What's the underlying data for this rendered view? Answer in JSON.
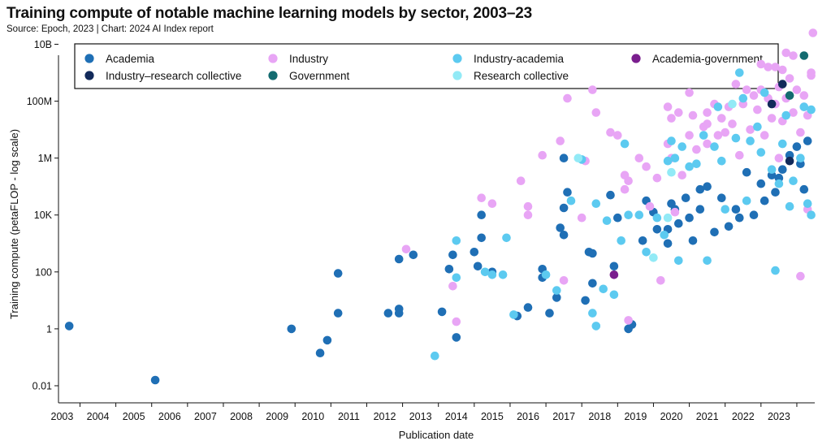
{
  "header": {
    "title": "Training compute of notable machine learning models by sector, 2003–23",
    "source": "Source: Epoch, 2023 | Chart: 2024 AI Index report"
  },
  "colors": {
    "Academia": "#1f6fb5",
    "Industry": "#e8a5f5",
    "Industry-academia": "#5ccaf0",
    "Academia-government": "#7a1e8e",
    "Industry–research collective": "#122a5a",
    "Government": "#136b70",
    "Research collective": "#92eaf6"
  },
  "chart_data": {
    "type": "scatter",
    "title": "Training compute of notable machine learning models by sector, 2003–23",
    "xlabel": "Publication date",
    "ylabel": "Training compute (petaFLOP - log scale)",
    "yscale": "log",
    "xlim": [
      2002.9,
      2024.0
    ],
    "ylim_exponent": [
      -2.6,
      9.9
    ],
    "x_ticks": [
      "2003",
      "2004",
      "2005",
      "2006",
      "2007",
      "2008",
      "2009",
      "2010",
      "2011",
      "2012",
      "2013",
      "2014",
      "2015",
      "2016",
      "2017",
      "2018",
      "2019",
      "2020",
      "2021",
      "2022",
      "2023"
    ],
    "y_ticks": [
      {
        "label": "0.01",
        "exp": -2
      },
      {
        "label": "1",
        "exp": 0
      },
      {
        "label": "100",
        "exp": 2
      },
      {
        "label": "10K",
        "exp": 4
      },
      {
        "label": "1M",
        "exp": 6
      },
      {
        "label": "100M",
        "exp": 8
      },
      {
        "label": "10B",
        "exp": 10
      }
    ],
    "grid": false,
    "legend_position": "top",
    "legend": [
      "Academia",
      "Industry",
      "Industry-academia",
      "Academia-government",
      "Industry–research collective",
      "Government",
      "Research collective"
    ],
    "series": [
      {
        "name": "Academia",
        "points": [
          [
            2003.2,
            0.1
          ],
          [
            2005.6,
            -1.8
          ],
          [
            2009.4,
            0.0
          ],
          [
            2010.2,
            -0.85
          ],
          [
            2010.4,
            -0.4
          ],
          [
            2010.7,
            0.55
          ],
          [
            2010.7,
            1.95
          ],
          [
            2012.1,
            0.55
          ],
          [
            2012.4,
            0.7
          ],
          [
            2012.4,
            0.55
          ],
          [
            2012.4,
            2.45
          ],
          [
            2012.8,
            2.6
          ],
          [
            2013.6,
            0.6
          ],
          [
            2013.8,
            2.1
          ],
          [
            2013.9,
            2.6
          ],
          [
            2014.0,
            -0.3
          ],
          [
            2014.5,
            2.7
          ],
          [
            2014.6,
            2.2
          ],
          [
            2014.7,
            3.2
          ],
          [
            2014.7,
            4.0
          ],
          [
            2015.0,
            2.0
          ],
          [
            2015.7,
            0.45
          ],
          [
            2016.0,
            0.75
          ],
          [
            2016.4,
            2.1
          ],
          [
            2016.4,
            1.8
          ],
          [
            2016.6,
            0.55
          ],
          [
            2016.8,
            1.1
          ],
          [
            2016.9,
            3.55
          ],
          [
            2017.0,
            4.25
          ],
          [
            2017.0,
            3.3
          ],
          [
            2017.1,
            4.8
          ],
          [
            2017.0,
            6.0
          ],
          [
            2017.6,
            1.0
          ],
          [
            2017.7,
            2.7
          ],
          [
            2017.8,
            1.6
          ],
          [
            2017.8,
            2.65
          ],
          [
            2018.3,
            4.7
          ],
          [
            2018.4,
            2.2
          ],
          [
            2018.5,
            3.9
          ],
          [
            2018.8,
            0.0
          ],
          [
            2018.9,
            0.15
          ],
          [
            2019.2,
            3.1
          ],
          [
            2019.3,
            4.5
          ],
          [
            2019.5,
            4.1
          ],
          [
            2019.6,
            3.5
          ],
          [
            2019.9,
            3.5
          ],
          [
            2019.9,
            3.0
          ],
          [
            2020.0,
            4.4
          ],
          [
            2020.1,
            4.2
          ],
          [
            2020.2,
            3.7
          ],
          [
            2020.4,
            4.6
          ],
          [
            2020.5,
            3.9
          ],
          [
            2020.6,
            3.1
          ],
          [
            2020.8,
            4.9
          ],
          [
            2020.8,
            4.2
          ],
          [
            2021.0,
            5.0
          ],
          [
            2021.2,
            3.4
          ],
          [
            2021.4,
            4.6
          ],
          [
            2021.6,
            3.6
          ],
          [
            2021.8,
            4.2
          ],
          [
            2021.9,
            3.9
          ],
          [
            2022.1,
            5.5
          ],
          [
            2022.3,
            4.0
          ],
          [
            2022.5,
            5.1
          ],
          [
            2022.6,
            4.5
          ],
          [
            2022.8,
            5.4
          ],
          [
            2022.9,
            4.8
          ],
          [
            2023.0,
            5.3
          ],
          [
            2023.1,
            5.6
          ],
          [
            2023.3,
            6.1
          ],
          [
            2023.5,
            6.4
          ],
          [
            2023.6,
            5.8
          ],
          [
            2023.7,
            4.9
          ],
          [
            2023.8,
            6.6
          ]
        ]
      },
      {
        "name": "Industry",
        "points": [
          [
            2012.6,
            2.8
          ],
          [
            2013.9,
            1.5
          ],
          [
            2014.0,
            0.25
          ],
          [
            2014.7,
            4.6
          ],
          [
            2015.0,
            4.4
          ],
          [
            2015.8,
            5.2
          ],
          [
            2016.0,
            4.3
          ],
          [
            2016.0,
            4.0
          ],
          [
            2016.4,
            6.1
          ],
          [
            2016.9,
            6.6
          ],
          [
            2017.0,
            1.7
          ],
          [
            2017.1,
            8.1
          ],
          [
            2017.5,
            3.9
          ],
          [
            2017.6,
            5.9
          ],
          [
            2017.8,
            8.4
          ],
          [
            2017.9,
            7.6
          ],
          [
            2018.3,
            6.9
          ],
          [
            2018.5,
            6.8
          ],
          [
            2018.7,
            5.4
          ],
          [
            2018.7,
            4.9
          ],
          [
            2018.8,
            5.2
          ],
          [
            2018.8,
            0.3
          ],
          [
            2019.1,
            6.0
          ],
          [
            2019.3,
            5.7
          ],
          [
            2019.4,
            4.3
          ],
          [
            2019.6,
            5.3
          ],
          [
            2019.7,
            1.7
          ],
          [
            2019.9,
            6.5
          ],
          [
            2019.9,
            7.8
          ],
          [
            2020.0,
            7.4
          ],
          [
            2020.0,
            6.0
          ],
          [
            2020.1,
            4.1
          ],
          [
            2020.2,
            7.6
          ],
          [
            2020.3,
            5.4
          ],
          [
            2020.5,
            6.8
          ],
          [
            2020.5,
            8.3
          ],
          [
            2020.6,
            7.5
          ],
          [
            2020.7,
            6.3
          ],
          [
            2020.9,
            7.1
          ],
          [
            2021.0,
            7.6
          ],
          [
            2021.0,
            7.2
          ],
          [
            2021.0,
            6.5
          ],
          [
            2021.2,
            7.9
          ],
          [
            2021.3,
            6.8
          ],
          [
            2021.4,
            7.4
          ],
          [
            2021.5,
            6.9
          ],
          [
            2021.6,
            7.8
          ],
          [
            2021.7,
            7.2
          ],
          [
            2021.8,
            8.6
          ],
          [
            2021.9,
            6.1
          ],
          [
            2022.0,
            7.9
          ],
          [
            2022.1,
            8.4
          ],
          [
            2022.2,
            7.0
          ],
          [
            2022.3,
            8.2
          ],
          [
            2022.4,
            7.7
          ],
          [
            2022.5,
            8.4
          ],
          [
            2022.6,
            6.8
          ],
          [
            2022.7,
            8.1
          ],
          [
            2022.8,
            7.4
          ],
          [
            2022.9,
            7.9
          ],
          [
            2023.0,
            8.5
          ],
          [
            2023.0,
            6.0
          ],
          [
            2023.1,
            7.3
          ],
          [
            2023.2,
            8.1
          ],
          [
            2023.2,
            9.7
          ],
          [
            2023.3,
            8.8
          ],
          [
            2023.4,
            7.6
          ],
          [
            2023.5,
            8.4
          ],
          [
            2023.6,
            6.9
          ],
          [
            2023.7,
            8.2
          ],
          [
            2023.8,
            7.5
          ],
          [
            2023.9,
            8.9
          ],
          [
            2023.9,
            9.0
          ],
          [
            2023.95,
            10.4
          ],
          [
            2023.6,
            1.85
          ],
          [
            2023.8,
            4.2
          ],
          [
            2023.7,
            7.8
          ],
          [
            2023.4,
            9.6
          ],
          [
            2022.9,
            9.2
          ],
          [
            2022.7,
            9.2
          ],
          [
            2022.5,
            9.3
          ],
          [
            2023.1,
            9.1
          ]
        ]
      },
      {
        "name": "Industry-academia",
        "points": [
          [
            2013.4,
            -0.95
          ],
          [
            2014.0,
            1.8
          ],
          [
            2014.0,
            3.1
          ],
          [
            2014.8,
            2.0
          ],
          [
            2015.0,
            1.9
          ],
          [
            2015.3,
            1.9
          ],
          [
            2015.4,
            3.2
          ],
          [
            2015.6,
            0.5
          ],
          [
            2016.5,
            1.9
          ],
          [
            2016.8,
            1.35
          ],
          [
            2017.2,
            4.5
          ],
          [
            2017.5,
            5.95
          ],
          [
            2017.8,
            0.55
          ],
          [
            2017.9,
            0.1
          ],
          [
            2017.9,
            4.4
          ],
          [
            2018.1,
            1.4
          ],
          [
            2018.2,
            3.8
          ],
          [
            2018.4,
            1.2
          ],
          [
            2018.6,
            3.1
          ],
          [
            2018.7,
            6.5
          ],
          [
            2018.8,
            4.0
          ],
          [
            2019.1,
            4.0
          ],
          [
            2019.3,
            2.7
          ],
          [
            2019.6,
            3.9
          ],
          [
            2019.8,
            3.3
          ],
          [
            2019.9,
            5.9
          ],
          [
            2020.0,
            6.6
          ],
          [
            2020.1,
            6.0
          ],
          [
            2020.2,
            2.4
          ],
          [
            2020.3,
            6.4
          ],
          [
            2020.5,
            5.7
          ],
          [
            2020.7,
            5.8
          ],
          [
            2020.9,
            6.8
          ],
          [
            2021.0,
            2.4
          ],
          [
            2021.2,
            6.4
          ],
          [
            2021.3,
            7.8
          ],
          [
            2021.4,
            5.9
          ],
          [
            2021.5,
            4.2
          ],
          [
            2021.8,
            6.7
          ],
          [
            2021.9,
            9.0
          ],
          [
            2022.0,
            8.1
          ],
          [
            2022.1,
            4.5
          ],
          [
            2022.2,
            6.6
          ],
          [
            2022.4,
            7.1
          ],
          [
            2022.5,
            6.2
          ],
          [
            2022.6,
            8.3
          ],
          [
            2022.8,
            5.6
          ],
          [
            2022.9,
            2.05
          ],
          [
            2023.0,
            5.1
          ],
          [
            2023.1,
            6.5
          ],
          [
            2023.2,
            7.5
          ],
          [
            2023.3,
            4.3
          ],
          [
            2023.4,
            5.2
          ],
          [
            2023.6,
            6.0
          ],
          [
            2023.7,
            7.8
          ],
          [
            2023.8,
            4.4
          ],
          [
            2023.9,
            4.0
          ],
          [
            2023.9,
            7.7
          ]
        ]
      },
      {
        "name": "Academia-government",
        "points": [
          [
            2018.4,
            1.9
          ]
        ]
      },
      {
        "name": "Industry–research collective",
        "points": [
          [
            2023.1,
            8.6
          ],
          [
            2023.3,
            5.9
          ],
          [
            2022.8,
            7.9
          ]
        ]
      },
      {
        "name": "Government",
        "points": [
          [
            2023.3,
            8.2
          ],
          [
            2023.7,
            9.6
          ]
        ]
      },
      {
        "name": "Research collective",
        "points": [
          [
            2017.4,
            6.0
          ],
          [
            2019.5,
            2.5
          ],
          [
            2019.9,
            3.9
          ],
          [
            2020.0,
            5.5
          ],
          [
            2021.7,
            7.9
          ]
        ]
      }
    ]
  }
}
